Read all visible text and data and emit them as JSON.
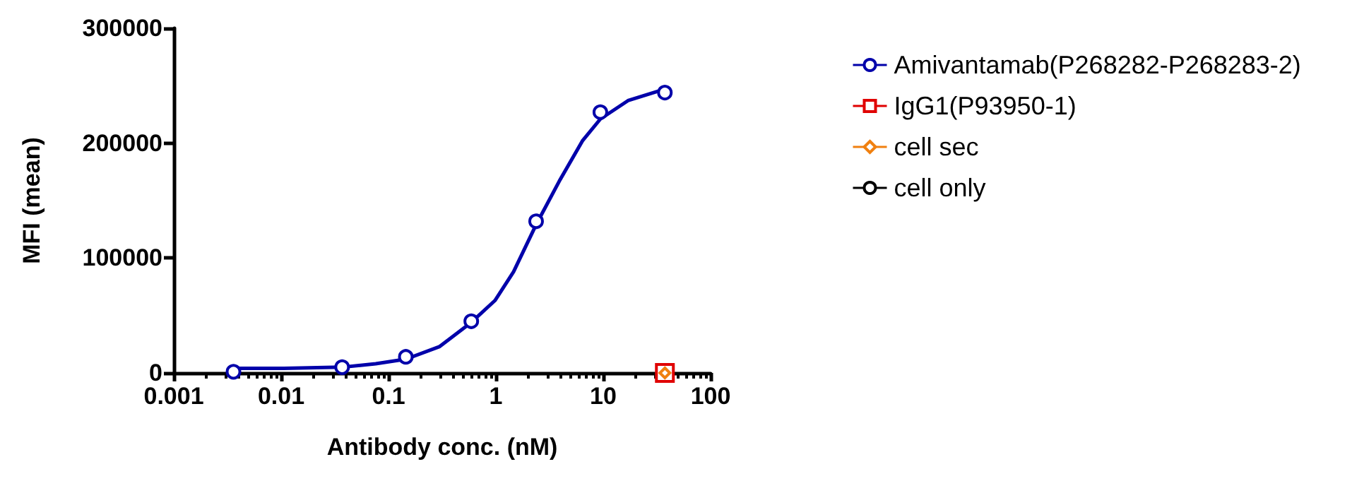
{
  "chart_data": {
    "type": "scatter",
    "xlabel": "Antibody conc. (nM)",
    "ylabel": "MFI (mean)",
    "log": "x",
    "xlim": [
      0.001,
      100
    ],
    "xticks": [
      0.001,
      0.01,
      0.1,
      1,
      10,
      100
    ],
    "ylim": [
      0,
      300000
    ],
    "yticks": [
      0,
      100000,
      200000,
      300000
    ],
    "grid": false,
    "legend": "top right",
    "series": [
      {
        "type": "line",
        "color": "#0000aa",
        "marker": "none",
        "line_style": "solid",
        "x": [
          0.0036,
          0.0106,
          0.037,
          0.076,
          0.145,
          0.3,
          0.59,
          0.98,
          1.46,
          2.37,
          3.9,
          6.4,
          9.4,
          17,
          37.5
        ],
        "values": [
          4000,
          4000,
          5000,
          8000,
          12000,
          23000,
          44000,
          63000,
          88000,
          129000,
          167000,
          202000,
          221000,
          237000,
          247000
        ]
      },
      {
        "name": "Amivantamab(P268282-P268283-2)",
        "color": "#0000aa",
        "marker": "circle",
        "x": [
          0.0036,
          0.037,
          0.145,
          0.59,
          2.37,
          9.4,
          37.5
        ],
        "values": [
          1000,
          5000,
          14000,
          45000,
          132000,
          227000,
          244000
        ]
      },
      {
        "name": "IgG1(P93950-1)",
        "color": "#e00000",
        "marker": "square",
        "x": [
          37.5
        ],
        "values": [
          0
        ]
      },
      {
        "name": "cell sec",
        "color": "#f08010",
        "marker": "diamond",
        "x": [
          37.5
        ],
        "values": [
          0
        ]
      },
      {
        "name": "cell only",
        "color": "#000000",
        "marker": "circle"
      }
    ]
  }
}
